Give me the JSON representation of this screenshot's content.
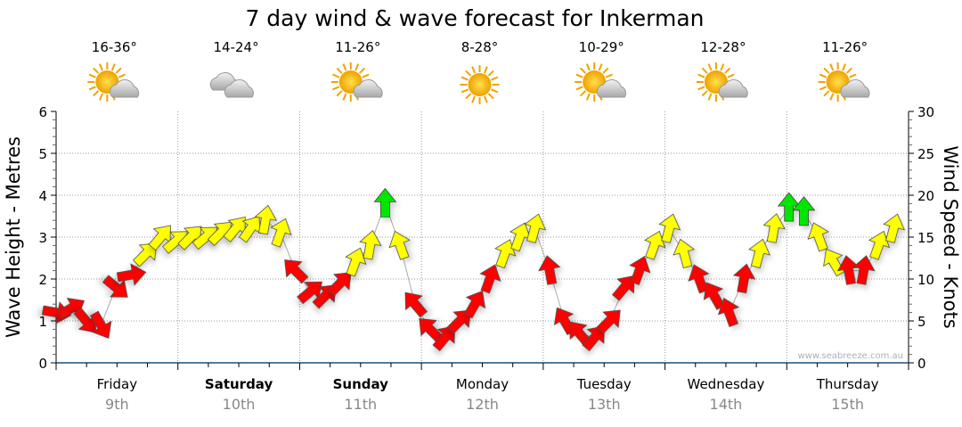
{
  "chart_data": {
    "type": "scatter",
    "title": "7 day wind & wave forecast for Inkerman",
    "ylabel": "Wave Height - Metres",
    "y2label": "Wind Speed - Knots",
    "ylim": [
      0,
      6
    ],
    "y2lim": [
      0,
      30
    ],
    "yticks": [
      "0",
      "1",
      "2",
      "3",
      "4",
      "5",
      "6"
    ],
    "y2ticks": [
      "0",
      "5",
      "10",
      "15",
      "20",
      "25",
      "30"
    ],
    "watermark": "www.seabreeze.com.au",
    "grid": true,
    "days": [
      {
        "name": "Friday",
        "date": "9th",
        "bold": false,
        "temp": "16-36°",
        "weather": "sun-cloud"
      },
      {
        "name": "Saturday",
        "date": "10th",
        "bold": true,
        "temp": "14-24°",
        "weather": "cloud"
      },
      {
        "name": "Sunday",
        "date": "11th",
        "bold": true,
        "temp": "11-26°",
        "weather": "sun-cloud"
      },
      {
        "name": "Monday",
        "date": "12th",
        "bold": false,
        "temp": "8-28°",
        "weather": "sun"
      },
      {
        "name": "Tuesday",
        "date": "13th",
        "bold": false,
        "temp": "10-29°",
        "weather": "sun-cloud"
      },
      {
        "name": "Wednesday",
        "date": "14th",
        "bold": false,
        "temp": "12-28°",
        "weather": "sun-cloud"
      },
      {
        "name": "Thursday",
        "date": "15th",
        "bold": false,
        "temp": "11-26°",
        "weather": "sun-cloud"
      }
    ],
    "wind_speed_thresholds": {
      "yellow": 12,
      "green": 18
    },
    "colors": {
      "low": "#ff0000",
      "mid": "#ffff00",
      "high": "#00e600"
    },
    "wind": {
      "interval_hours": 3,
      "speed_knots": [
        6,
        6.5,
        5,
        4.5,
        9,
        10.5,
        13,
        15,
        14.5,
        15,
        15,
        15.5,
        16,
        16,
        17,
        15.5,
        11,
        8.5,
        8,
        9.5,
        12,
        14,
        19,
        14,
        7,
        4,
        3,
        5,
        7,
        10,
        13,
        15,
        16,
        11,
        5,
        3.5,
        3,
        5,
        9,
        11,
        14,
        16,
        13,
        10,
        8,
        6,
        10,
        13,
        16,
        18.5,
        18,
        15,
        12,
        11,
        11,
        14,
        16
      ],
      "direction_deg": [
        100,
        60,
        140,
        150,
        130,
        80,
        45,
        40,
        50,
        45,
        50,
        45,
        40,
        35,
        10,
        20,
        -45,
        50,
        45,
        45,
        20,
        10,
        0,
        -20,
        -40,
        -45,
        40,
        45,
        30,
        20,
        20,
        20,
        15,
        -10,
        -30,
        -40,
        40,
        45,
        40,
        20,
        20,
        15,
        -15,
        -20,
        -30,
        -20,
        10,
        15,
        10,
        0,
        0,
        -20,
        -30,
        -10,
        10,
        20,
        15
      ]
    }
  }
}
